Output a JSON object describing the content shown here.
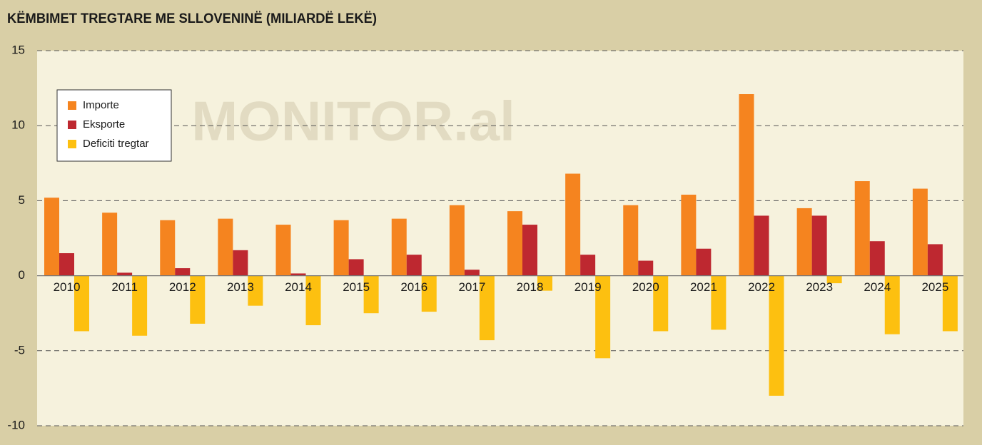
{
  "chart_data": {
    "type": "bar",
    "title": "KËMBIMET TREGTARE ME SLLOVENINË (MILIARDË LEKË)",
    "watermark": "MONITOR.al",
    "categories": [
      "2010",
      "2011",
      "2012",
      "2013",
      "2014",
      "2015",
      "2016",
      "2017",
      "2018",
      "2019",
      "2020",
      "2021",
      "2022",
      "2023",
      "2024",
      "2025"
    ],
    "series": [
      {
        "name": "Importe",
        "color": "#f5841f",
        "values": [
          5.2,
          4.2,
          3.7,
          3.8,
          3.4,
          3.7,
          3.8,
          4.7,
          4.3,
          6.8,
          4.7,
          5.4,
          12.1,
          4.5,
          6.3,
          5.8
        ]
      },
      {
        "name": "Eksporte",
        "color": "#be2830",
        "values": [
          1.5,
          0.2,
          0.5,
          1.7,
          0.15,
          1.1,
          1.4,
          0.4,
          3.4,
          1.4,
          1.0,
          1.8,
          4.0,
          4.0,
          2.3,
          2.1
        ]
      },
      {
        "name": "Deficiti tregtar",
        "color": "#fdc010",
        "values": [
          -3.7,
          -4.0,
          -3.2,
          -2.0,
          -3.3,
          -2.5,
          -2.4,
          -4.3,
          -1.0,
          -5.5,
          -3.7,
          -3.6,
          -8.0,
          -0.5,
          -3.9,
          -3.7
        ]
      }
    ],
    "ylim": [
      -10,
      15
    ],
    "yticks": [
      -10,
      -5,
      0,
      5,
      10,
      15
    ],
    "grid": true,
    "legend": "top-left"
  }
}
